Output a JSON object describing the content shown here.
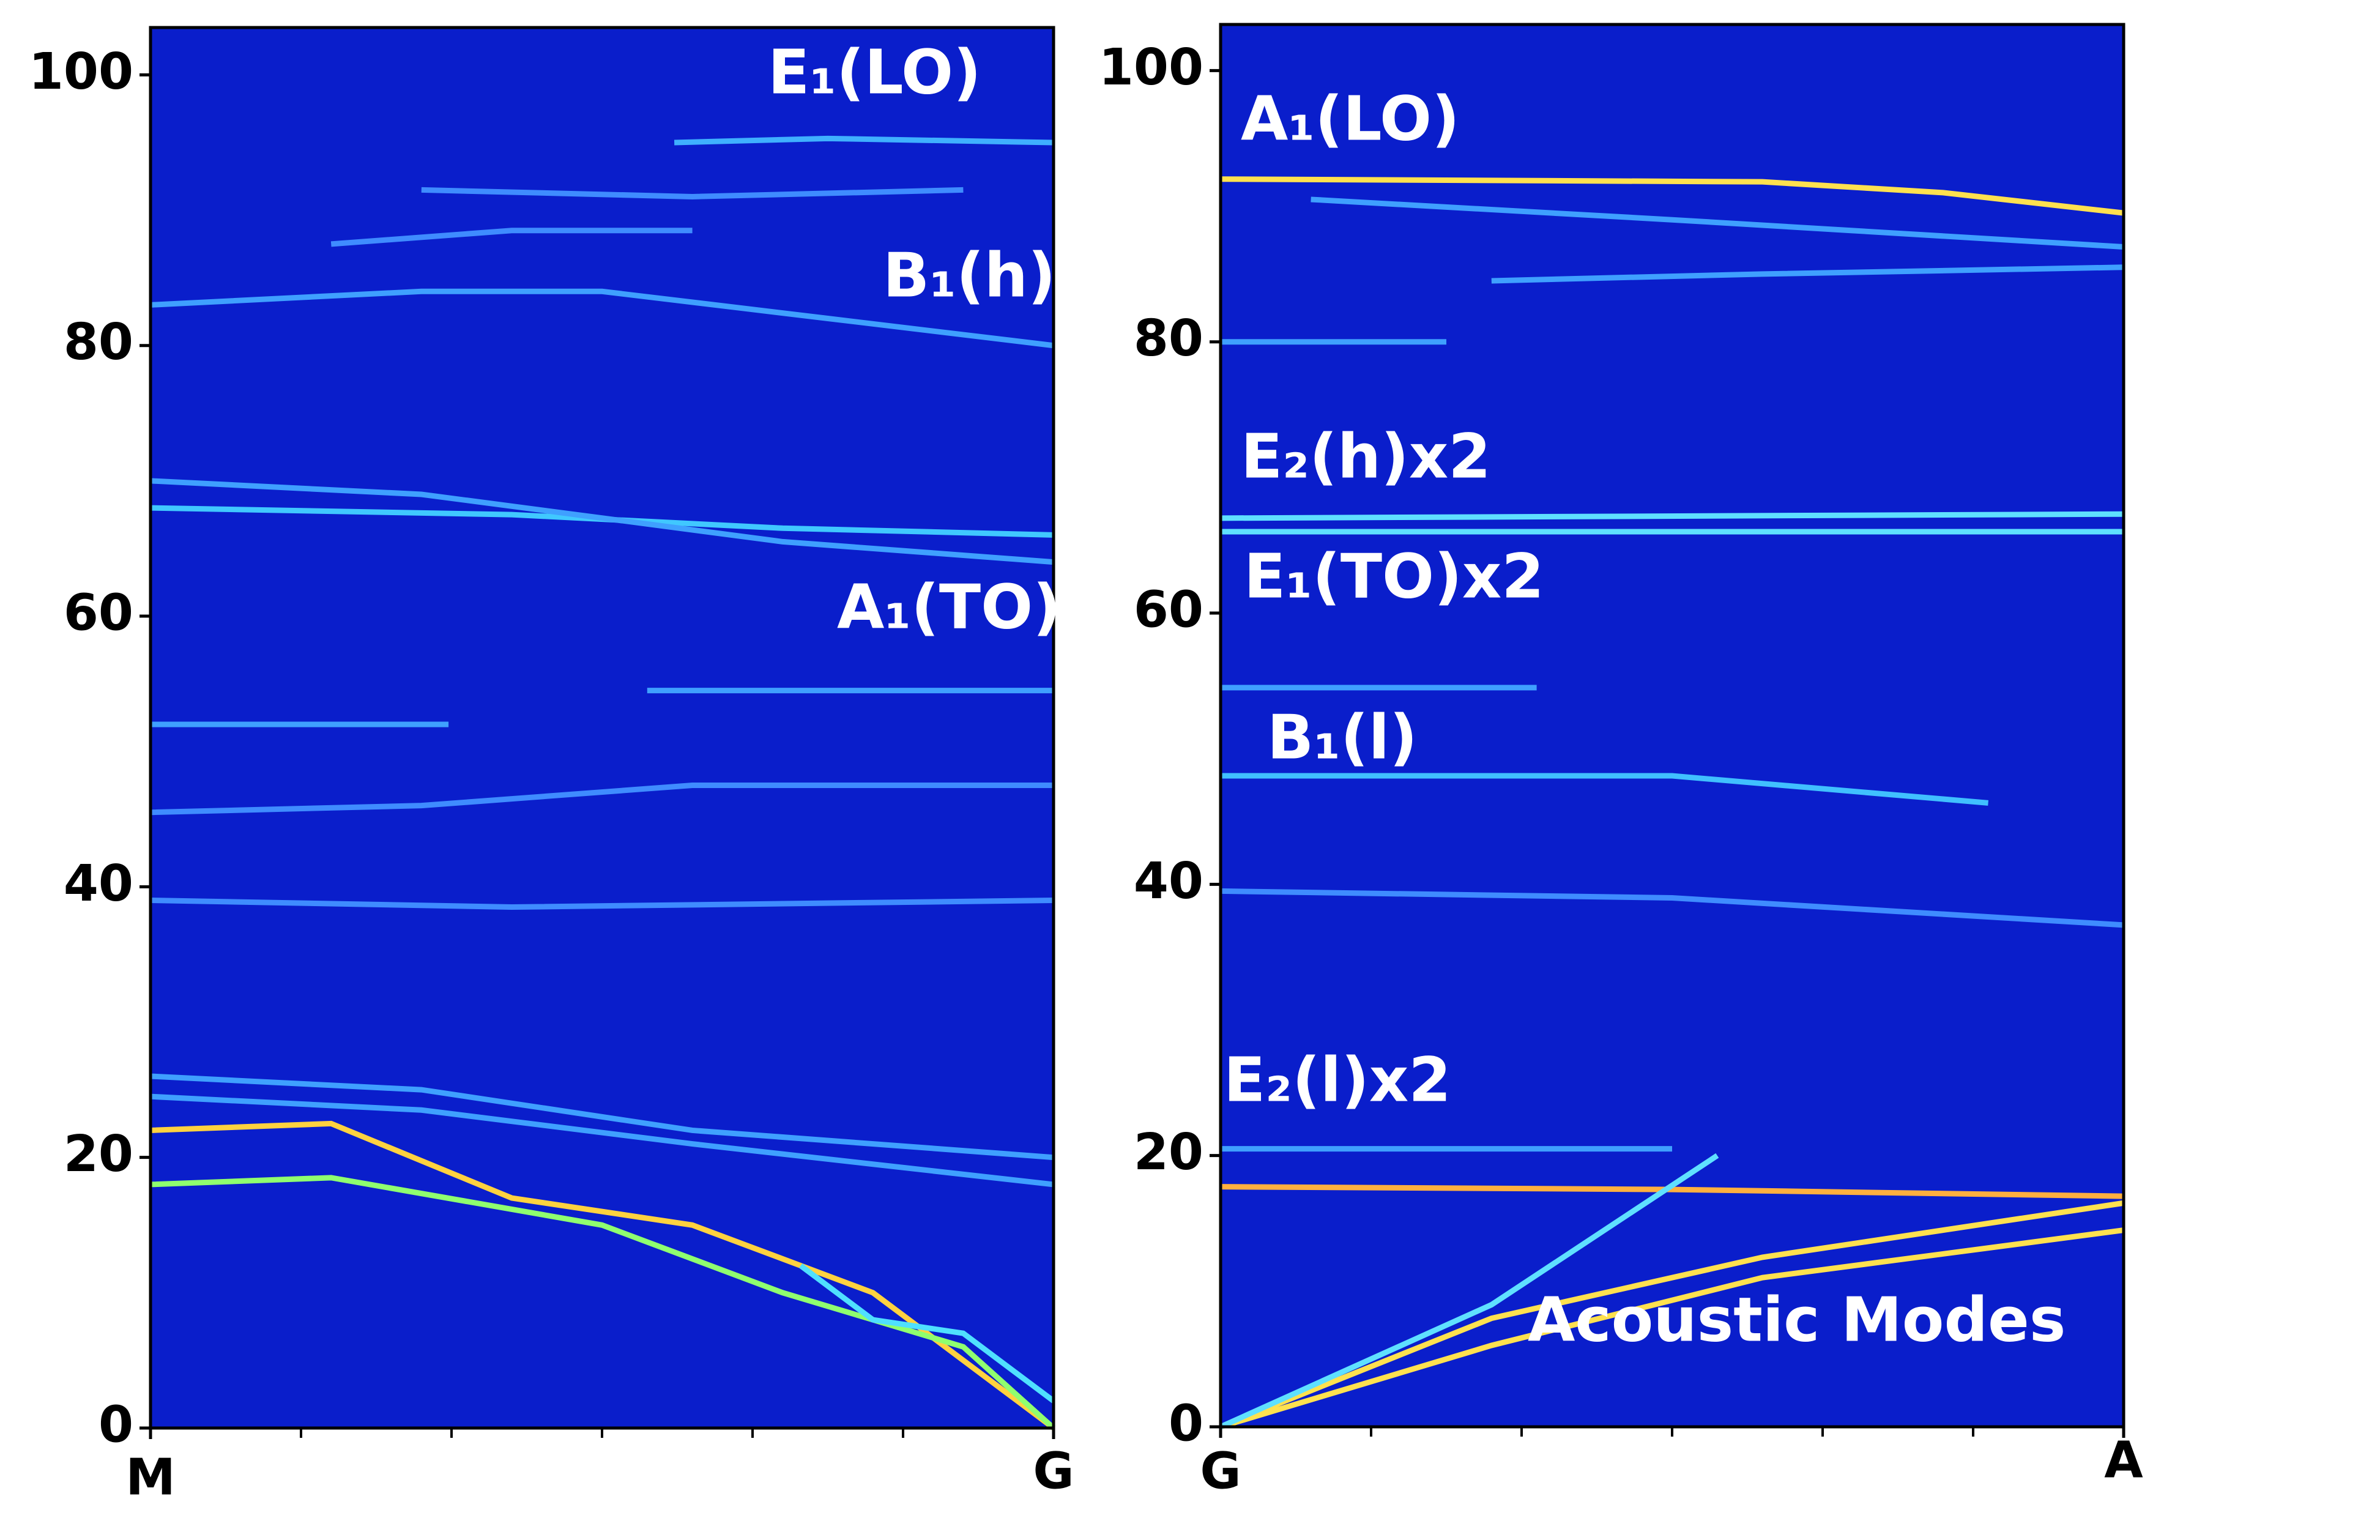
{
  "chart_data": [
    {
      "type": "line",
      "background": "#0a1ecb",
      "xlim": [
        0,
        1
      ],
      "xticks": [
        {
          "value": 0,
          "label": "M"
        },
        {
          "value": 1,
          "label": "G"
        }
      ],
      "ylim": [
        0,
        103.5
      ],
      "yticks": [
        0,
        20,
        40,
        60,
        80,
        100
      ],
      "annotations": [
        "E₁(LO)",
        "B₁(h)",
        "A₁(TO)"
      ],
      "series": [
        {
          "color": "#3fb0ff",
          "x": [
            0.58,
            0.75,
            1
          ],
          "values": [
            95,
            95.3,
            95
          ]
        },
        {
          "color": "#3f8cff",
          "x": [
            0.3,
            0.6,
            0.9
          ],
          "values": [
            91.5,
            91,
            91.5
          ]
        },
        {
          "color": "#3f8cff",
          "x": [
            0.2,
            0.4,
            0.6
          ],
          "values": [
            87.5,
            88.5,
            88.5
          ]
        },
        {
          "color": "#3fa0ff",
          "x": [
            0,
            0.3,
            0.5,
            0.75,
            1
          ],
          "values": [
            83,
            84,
            84,
            82,
            80
          ]
        },
        {
          "color": "#40c8ff",
          "x": [
            0,
            0.4,
            0.7,
            1
          ],
          "values": [
            68,
            67.5,
            66.5,
            66
          ]
        },
        {
          "color": "#3fa0ff",
          "x": [
            0,
            0.3,
            0.7,
            1
          ],
          "values": [
            70,
            69,
            65.5,
            64
          ]
        },
        {
          "color": "#3fa0ff",
          "x": [
            0,
            0.33
          ],
          "values": [
            52,
            52
          ]
        },
        {
          "color": "#3fa0ff",
          "x": [
            0.55,
            1
          ],
          "values": [
            54.5,
            54.5
          ]
        },
        {
          "color": "#3f8cff",
          "x": [
            0,
            0.3,
            0.6,
            1
          ],
          "values": [
            45.5,
            46,
            47.5,
            47.5
          ]
        },
        {
          "color": "#3f8cff",
          "x": [
            0,
            0.4,
            1
          ],
          "values": [
            39,
            38.5,
            39
          ]
        },
        {
          "color": "#3fa0ff",
          "x": [
            0,
            0.3,
            0.6,
            1
          ],
          "values": [
            26,
            25,
            22,
            20
          ]
        },
        {
          "color": "#3fa0ff",
          "x": [
            0,
            0.3,
            0.6,
            1
          ],
          "values": [
            24.5,
            23.5,
            21,
            18
          ]
        },
        {
          "color": "#ffd23f",
          "x": [
            0,
            0.2,
            0.4,
            0.6,
            0.8,
            1
          ],
          "values": [
            22,
            22.5,
            17,
            15,
            10,
            0
          ]
        },
        {
          "color": "#8fff6f",
          "x": [
            0,
            0.2,
            0.5,
            0.7,
            0.9,
            1
          ],
          "values": [
            18,
            18.5,
            15,
            10,
            6,
            0
          ]
        },
        {
          "color": "#4fe0ff",
          "x": [
            0.72,
            0.8,
            0.9,
            1
          ],
          "values": [
            12,
            8,
            7,
            2
          ]
        }
      ]
    },
    {
      "type": "line",
      "background": "#0a1ecb",
      "xlim": [
        0,
        1
      ],
      "xticks": [
        {
          "value": 0,
          "label": "G"
        },
        {
          "value": 1,
          "label": "A"
        }
      ],
      "ylim": [
        0,
        103.4
      ],
      "yticks": [
        0,
        20,
        40,
        60,
        80,
        100
      ],
      "annotations": [
        "A₁(LO)",
        "E₂(h)x2",
        "E₁(TO)x2",
        "B₁(l)",
        "E₂(l)x2",
        "Acoustic Modes"
      ],
      "series": [
        {
          "color": "#ffe14f",
          "x": [
            0,
            0.6,
            0.8,
            1
          ],
          "values": [
            92,
            91.8,
            91,
            89.5
          ]
        },
        {
          "color": "#3fa0ff",
          "x": [
            0.1,
            0.5,
            1
          ],
          "values": [
            90.5,
            89,
            87
          ]
        },
        {
          "color": "#3fa0ff",
          "x": [
            0.3,
            0.6,
            1
          ],
          "values": [
            84.5,
            85,
            85.5
          ]
        },
        {
          "color": "#3fa0ff",
          "x": [
            0,
            0.25
          ],
          "values": [
            80,
            80
          ]
        },
        {
          "color": "#5fe0ff",
          "x": [
            0,
            1
          ],
          "values": [
            67,
            67.3
          ]
        },
        {
          "color": "#5fe0ff",
          "x": [
            0,
            1
          ],
          "values": [
            66,
            66
          ]
        },
        {
          "color": "#3fa0ff",
          "x": [
            0,
            0.35
          ],
          "values": [
            54.5,
            54.5
          ]
        },
        {
          "color": "#40c0ff",
          "x": [
            0,
            0.5,
            0.85
          ],
          "values": [
            48,
            48,
            46
          ]
        },
        {
          "color": "#3f8cff",
          "x": [
            0,
            0.5,
            1
          ],
          "values": [
            39.5,
            39,
            37
          ]
        },
        {
          "color": "#3fa0ff",
          "x": [
            0,
            0.5
          ],
          "values": [
            20.5,
            20.5
          ]
        },
        {
          "color": "#ffb03f",
          "x": [
            0,
            0.5,
            1
          ],
          "values": [
            17.7,
            17.5,
            17
          ]
        },
        {
          "color": "#ffe14f",
          "x": [
            0,
            0.3,
            0.6,
            1
          ],
          "values": [
            0,
            8,
            12.5,
            16.5
          ]
        },
        {
          "color": "#ffe14f",
          "x": [
            0,
            0.3,
            0.6,
            1
          ],
          "values": [
            0,
            6,
            11,
            14.5
          ]
        },
        {
          "color": "#5fe0ff",
          "x": [
            0,
            0.3,
            0.55
          ],
          "values": [
            0,
            9,
            20
          ]
        }
      ]
    }
  ]
}
